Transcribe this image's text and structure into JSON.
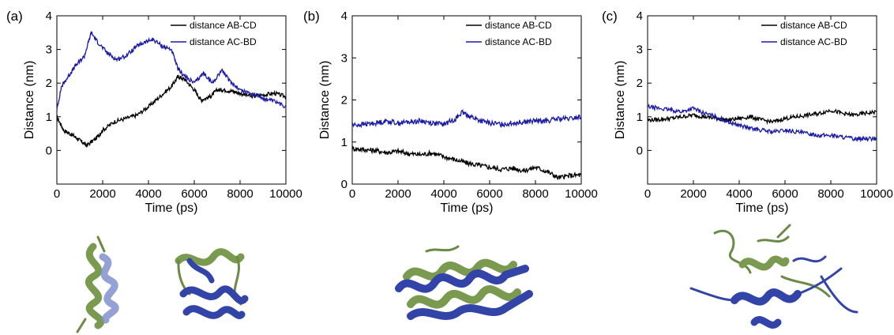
{
  "colors": {
    "ab_cd": "#000000",
    "ac_bd": "#1a1aa8",
    "helix_green": "#7a9a50",
    "helix_blue": "#3344a8"
  },
  "chart_data": [
    {
      "type": "line",
      "panel_tag": "(a)",
      "xlabel": "Time (ps)",
      "ylabel": "Distance (nm)",
      "xlim": [
        0,
        10000
      ],
      "ylim": [
        -1,
        4
      ],
      "xticks": [
        "0",
        "2000",
        "4000",
        "6000",
        "8000",
        "10000"
      ],
      "yticks": [
        "0",
        "1",
        "2",
        "3",
        "4"
      ],
      "legend_position": "top-right",
      "series": [
        {
          "name": "distance AB-CD",
          "color_key": "ab_cd",
          "x": [
            0,
            300,
            700,
            1000,
            1300,
            1700,
            2000,
            2500,
            3000,
            3500,
            4000,
            4500,
            5000,
            5300,
            5600,
            6000,
            6300,
            6700,
            7000,
            7300,
            7700,
            8000,
            8500,
            9000,
            9500,
            10000
          ],
          "y": [
            1.0,
            0.6,
            0.45,
            0.3,
            0.15,
            0.35,
            0.6,
            0.85,
            0.95,
            1.05,
            1.3,
            1.6,
            1.9,
            2.2,
            2.1,
            1.8,
            1.5,
            1.6,
            1.8,
            1.8,
            1.75,
            1.7,
            1.6,
            1.65,
            1.7,
            1.6
          ]
        },
        {
          "name": "distance AC-BD",
          "color_key": "ac_bd",
          "x": [
            0,
            200,
            500,
            800,
            1200,
            1500,
            1800,
            2200,
            2600,
            3000,
            3500,
            3800,
            4200,
            4600,
            5000,
            5300,
            5600,
            6000,
            6400,
            6800,
            7200,
            7500,
            8000,
            8500,
            9000,
            9500,
            10000
          ],
          "y": [
            1.2,
            1.9,
            2.2,
            2.5,
            2.8,
            3.5,
            3.2,
            2.9,
            2.7,
            2.8,
            3.1,
            3.2,
            3.3,
            3.1,
            3.0,
            2.4,
            2.2,
            2.0,
            2.3,
            2.0,
            2.4,
            2.1,
            1.8,
            1.7,
            1.55,
            1.45,
            1.3
          ]
        }
      ]
    },
    {
      "type": "line",
      "panel_tag": "(b)",
      "xlabel": "Time (ps)",
      "ylabel": "Distance (nm)",
      "xlim": [
        0,
        10000
      ],
      "ylim": [
        0,
        4
      ],
      "xticks": [
        "0",
        "2000",
        "4000",
        "6000",
        "8000",
        "10000"
      ],
      "yticks": [
        "0",
        "1",
        "2",
        "3",
        "4"
      ],
      "legend_position": "top-right",
      "series": [
        {
          "name": "distance AB-CD",
          "color_key": "ab_cd",
          "x": [
            0,
            500,
            1000,
            1500,
            2000,
            2500,
            3000,
            3500,
            4000,
            4500,
            5000,
            5500,
            6000,
            6500,
            7000,
            7500,
            8000,
            8500,
            9000,
            9500,
            10000
          ],
          "y": [
            0.85,
            0.82,
            0.8,
            0.75,
            0.78,
            0.72,
            0.7,
            0.74,
            0.65,
            0.58,
            0.5,
            0.45,
            0.4,
            0.35,
            0.38,
            0.32,
            0.4,
            0.3,
            0.15,
            0.2,
            0.22
          ]
        },
        {
          "name": "distance AC-BD",
          "color_key": "ac_bd",
          "x": [
            0,
            500,
            1000,
            1500,
            2000,
            2500,
            3000,
            3500,
            4000,
            4500,
            4800,
            5200,
            5600,
            6000,
            6500,
            7000,
            7500,
            8000,
            8500,
            9000,
            9500,
            10000
          ],
          "y": [
            1.4,
            1.42,
            1.45,
            1.5,
            1.45,
            1.48,
            1.5,
            1.45,
            1.42,
            1.55,
            1.7,
            1.6,
            1.5,
            1.45,
            1.42,
            1.45,
            1.48,
            1.5,
            1.5,
            1.55,
            1.55,
            1.6
          ]
        }
      ]
    },
    {
      "type": "line",
      "panel_tag": "(c)",
      "xlabel": "Time (ps)",
      "ylabel": "Distance (nm)",
      "xlim": [
        0,
        10000
      ],
      "ylim": [
        -1,
        4
      ],
      "xticks": [
        "0",
        "2000",
        "4000",
        "6000",
        "8000",
        "10000"
      ],
      "yticks": [
        "0",
        "1",
        "2",
        "3",
        "4"
      ],
      "legend_position": "top-right",
      "series": [
        {
          "name": "distance AB-CD",
          "color_key": "ab_cd",
          "x": [
            0,
            500,
            1000,
            1500,
            2000,
            2500,
            3000,
            3500,
            4000,
            4500,
            5000,
            5500,
            6000,
            6500,
            7000,
            7500,
            8000,
            8500,
            9000,
            9500,
            10000
          ],
          "y": [
            0.9,
            0.92,
            0.95,
            1.0,
            1.05,
            1.0,
            0.95,
            0.9,
            0.95,
            1.0,
            0.9,
            0.85,
            0.95,
            1.0,
            1.05,
            1.1,
            1.2,
            1.1,
            1.05,
            1.1,
            1.15
          ]
        },
        {
          "name": "distance AC-BD",
          "color_key": "ac_bd",
          "x": [
            0,
            500,
            1000,
            1500,
            2000,
            2500,
            3000,
            3500,
            4000,
            4500,
            5000,
            5500,
            6000,
            6500,
            7000,
            7500,
            8000,
            8500,
            9000,
            9500,
            10000
          ],
          "y": [
            1.3,
            1.25,
            1.2,
            1.15,
            1.25,
            1.1,
            1.0,
            0.85,
            0.75,
            0.65,
            0.6,
            0.55,
            0.6,
            0.55,
            0.5,
            0.45,
            0.45,
            0.4,
            0.35,
            0.35,
            0.35
          ]
        }
      ]
    }
  ]
}
